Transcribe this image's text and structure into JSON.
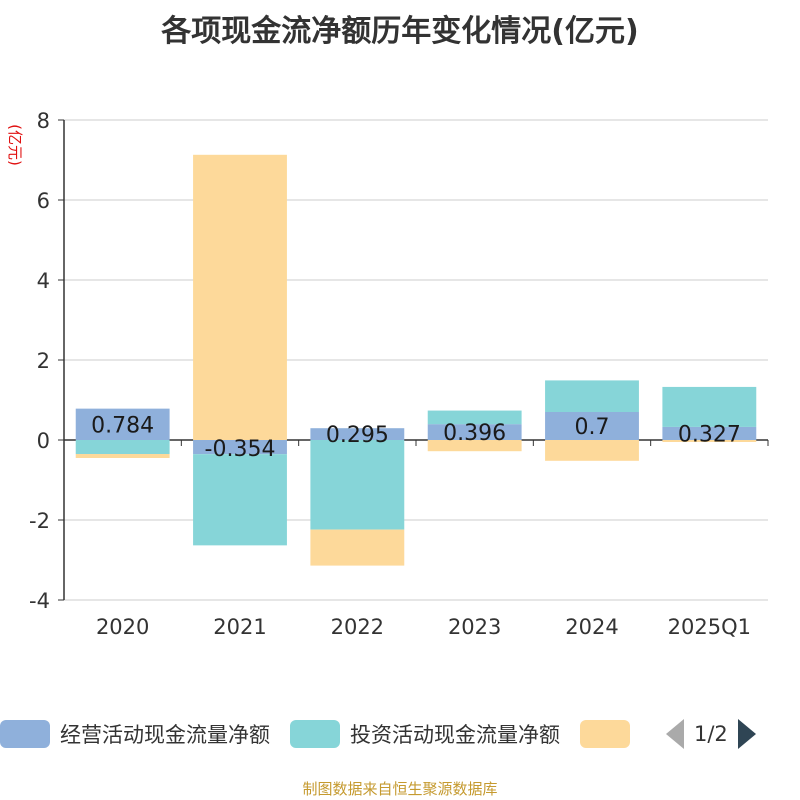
{
  "chart_data": {
    "type": "bar",
    "stacked": true,
    "title": "各项现金流净额历年变化情况(亿元)",
    "ylabel": "(亿元)",
    "xlabel": "",
    "categories": [
      "2020",
      "2021",
      "2022",
      "2023",
      "2024",
      "2025Q1"
    ],
    "ylim": [
      -4,
      8
    ],
    "yticks": [
      -4,
      -2,
      0,
      2,
      4,
      6,
      8
    ],
    "grid": true,
    "series": [
      {
        "name": "经营活动现金流量净额",
        "color": "#8fb0db",
        "values": [
          0.784,
          -0.354,
          0.295,
          0.396,
          0.7,
          0.327
        ]
      },
      {
        "name": "投资活动现金流量净额",
        "color": "#86d5d8",
        "values": [
          -0.35,
          -2.28,
          -2.24,
          0.34,
          0.79,
          1.0
        ]
      },
      {
        "name": "",
        "color": "#fdd99a",
        "values": [
          -0.1,
          7.13,
          -0.9,
          -0.28,
          -0.52,
          -0.05
        ]
      }
    ],
    "data_labels": [
      "0.784",
      "-0.354",
      "0.295",
      "0.396",
      "0.7",
      "0.327"
    ]
  },
  "legend": {
    "items": [
      {
        "label": "经营活动现金流量净额",
        "color": "#8fb0db"
      },
      {
        "label": "投资活动现金流量净额",
        "color": "#86d5d8"
      },
      {
        "label": "",
        "color": "#fdd99a"
      }
    ],
    "pager": "1/2"
  },
  "footer": "制图数据来自恒生聚源数据库"
}
